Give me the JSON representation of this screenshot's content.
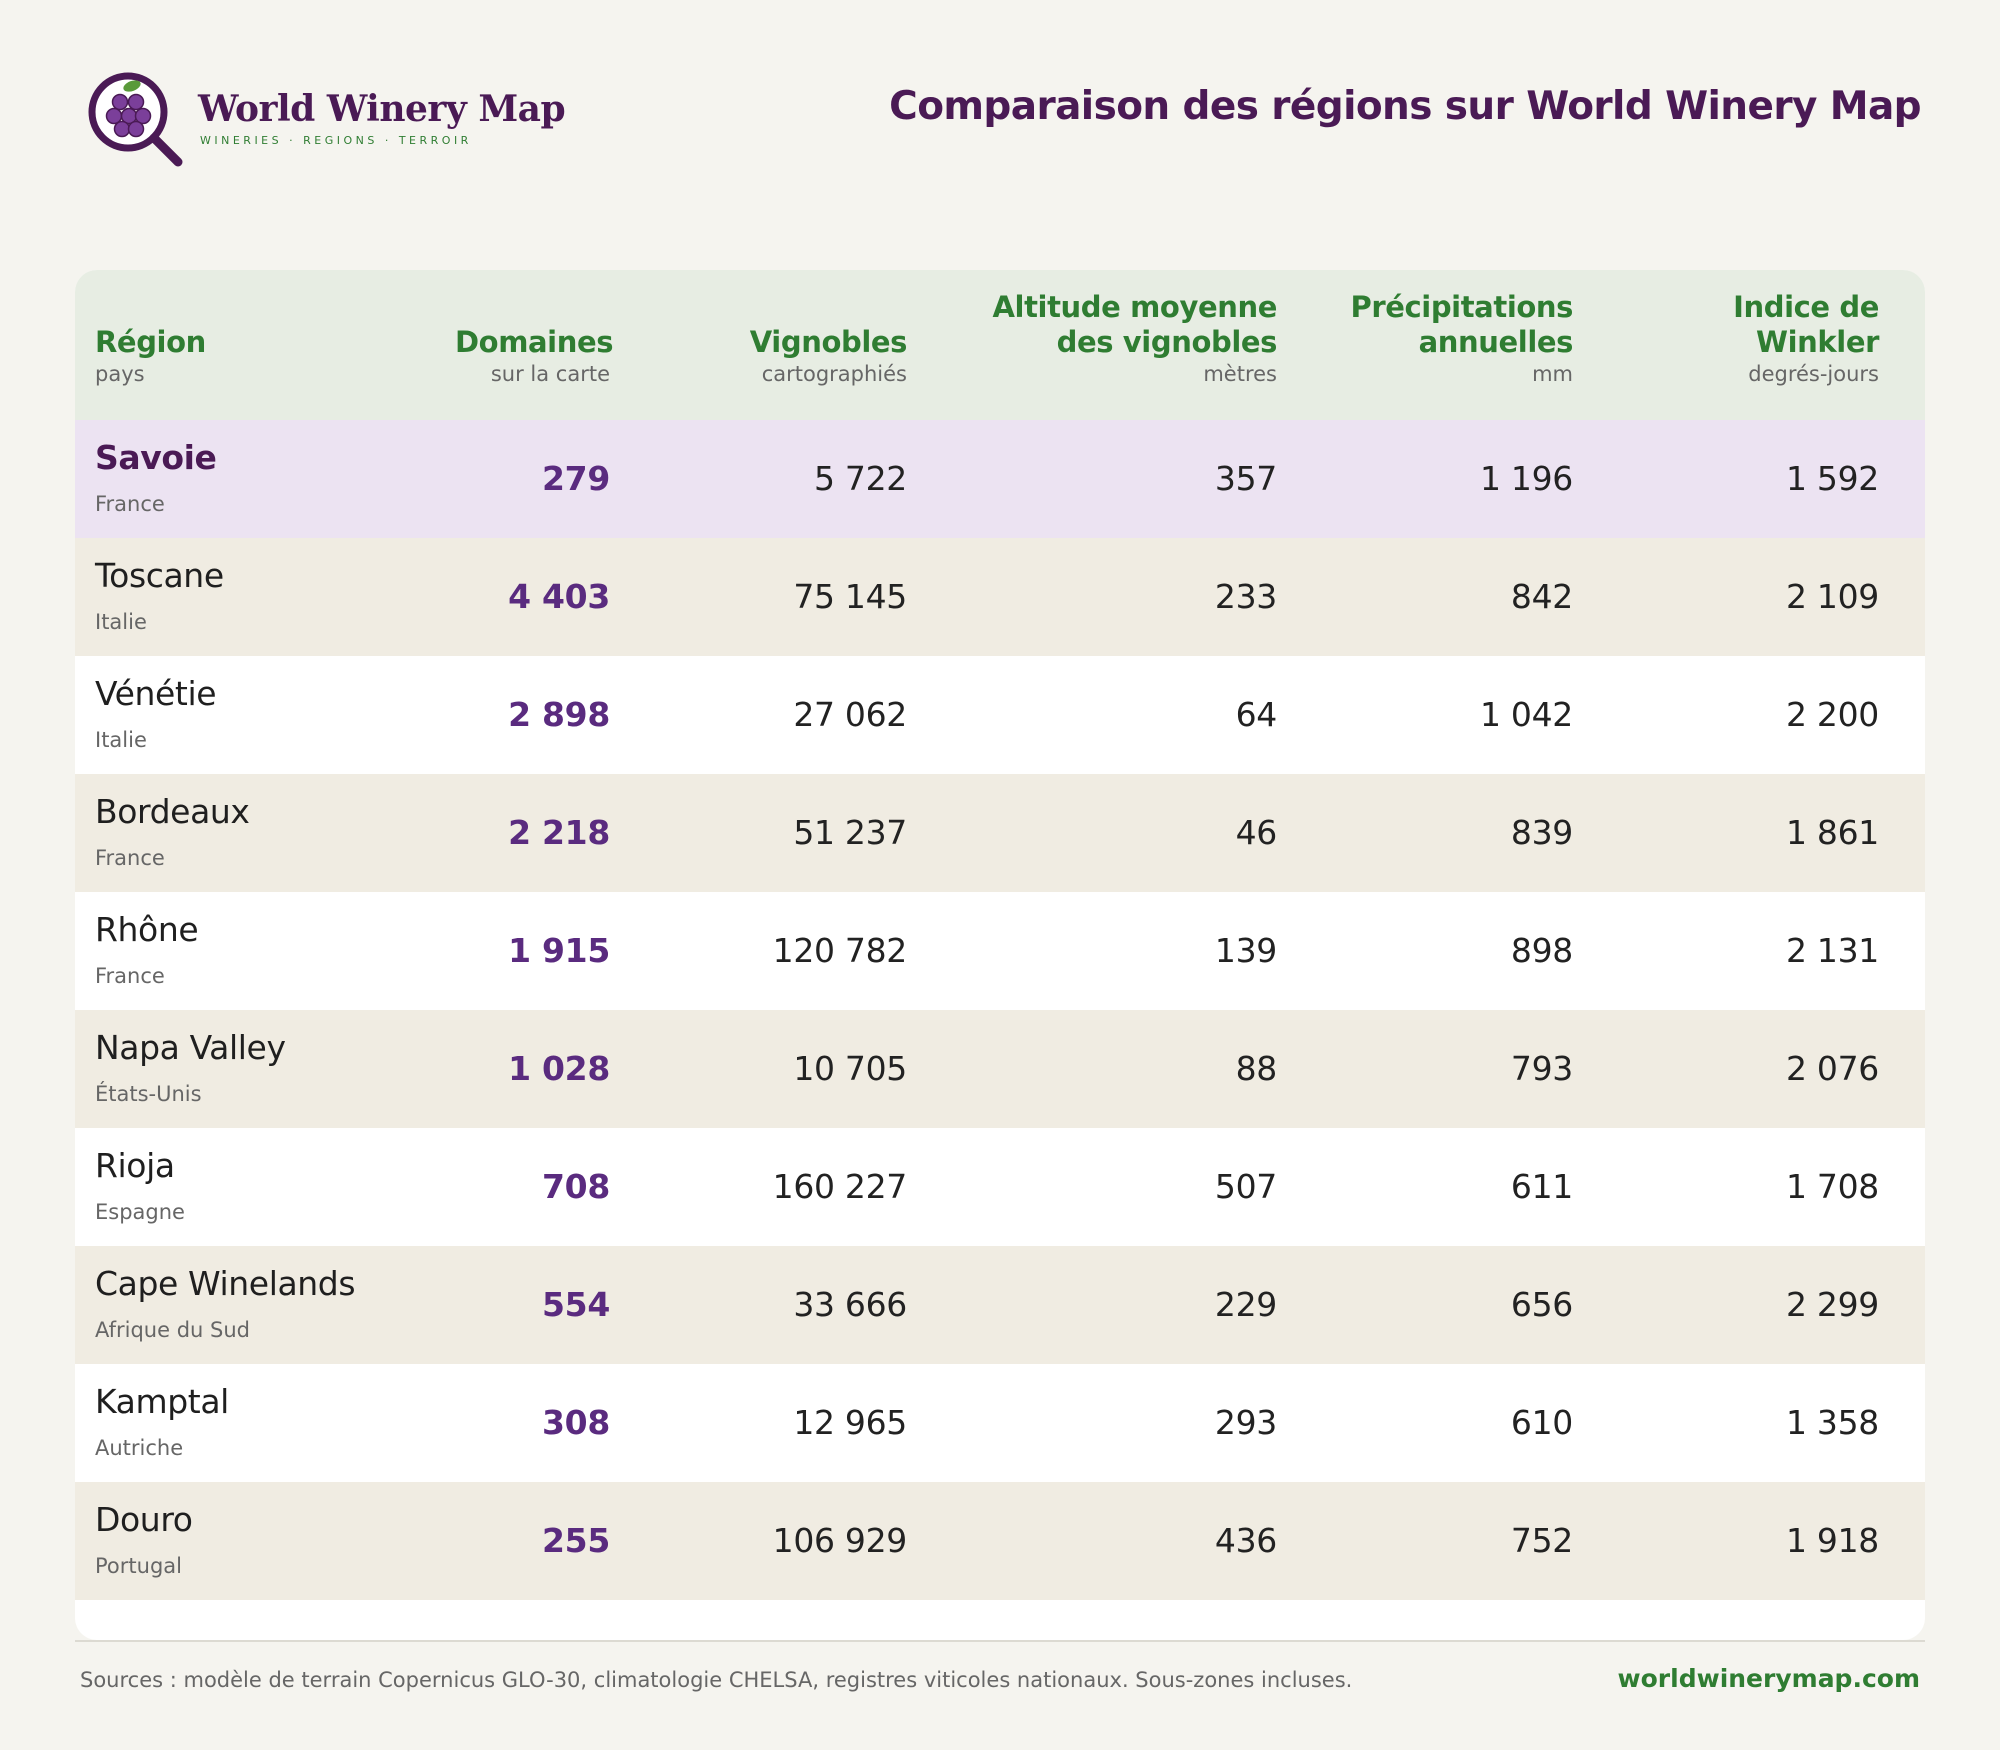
{
  "brand": {
    "name": "World Winery Map",
    "tagline": "WINERIES · REGIONS · TERROIR"
  },
  "page": {
    "title": "Comparaison des régions sur World Winery Map"
  },
  "table": {
    "columns": [
      {
        "title": "Région",
        "sub": "pays"
      },
      {
        "title": "Domaines",
        "sub": "sur la carte"
      },
      {
        "title": "Vignobles",
        "sub": "cartographiés"
      },
      {
        "title": "Altitude moyenne des vignobles",
        "sub": "mètres"
      },
      {
        "title": "Précipitations annuelles",
        "sub": "mm"
      },
      {
        "title": "Indice de Winkler",
        "sub": "degrés-jours"
      }
    ],
    "rows": [
      {
        "region": "Savoie",
        "country": "France",
        "domaines": "279",
        "vignobles": "5 722",
        "altitude": "357",
        "precip": "1 196",
        "winkler": "1 592",
        "highlighted": true
      },
      {
        "region": "Toscane",
        "country": "Italie",
        "domaines": "4 403",
        "vignobles": "75 145",
        "altitude": "233",
        "precip": "842",
        "winkler": "2 109"
      },
      {
        "region": "Vénétie",
        "country": "Italie",
        "domaines": "2 898",
        "vignobles": "27 062",
        "altitude": "64",
        "precip": "1 042",
        "winkler": "2 200"
      },
      {
        "region": "Bordeaux",
        "country": "France",
        "domaines": "2 218",
        "vignobles": "51 237",
        "altitude": "46",
        "precip": "839",
        "winkler": "1 861"
      },
      {
        "region": "Rhône",
        "country": "France",
        "domaines": "1 915",
        "vignobles": "120 782",
        "altitude": "139",
        "precip": "898",
        "winkler": "2 131"
      },
      {
        "region": "Napa Valley",
        "country": "États-Unis",
        "domaines": "1 028",
        "vignobles": "10 705",
        "altitude": "88",
        "precip": "793",
        "winkler": "2 076"
      },
      {
        "region": "Rioja",
        "country": "Espagne",
        "domaines": "708",
        "vignobles": "160 227",
        "altitude": "507",
        "precip": "611",
        "winkler": "1 708"
      },
      {
        "region": "Cape Winelands",
        "country": "Afrique du Sud",
        "domaines": "554",
        "vignobles": "33 666",
        "altitude": "229",
        "precip": "656",
        "winkler": "2 299"
      },
      {
        "region": "Kamptal",
        "country": "Autriche",
        "domaines": "308",
        "vignobles": "12 965",
        "altitude": "293",
        "precip": "610",
        "winkler": "1 358"
      },
      {
        "region": "Douro",
        "country": "Portugal",
        "domaines": "255",
        "vignobles": "106 929",
        "altitude": "436",
        "precip": "752",
        "winkler": "1 918"
      }
    ]
  },
  "footer": {
    "sources": "Sources : modèle de terrain Copernicus GLO-30, climatologie CHELSA, registres viticoles nationaux. Sous-zones incluses.",
    "link": "worldwinerymap.com"
  },
  "colors": {
    "brand_purple": "#4a1a55",
    "accent_green": "#2f7d32",
    "highlight_row": "#ece3f2"
  }
}
